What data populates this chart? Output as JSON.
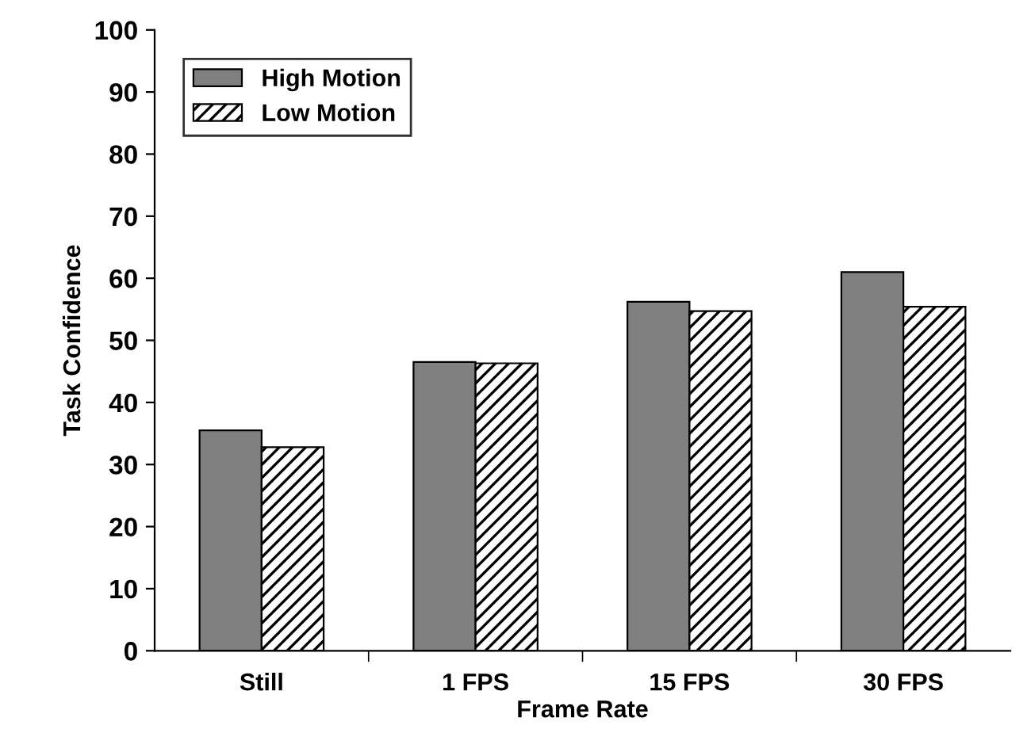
{
  "chart_data": {
    "type": "bar",
    "xlabel": "Frame Rate",
    "ylabel": "Task Confidence",
    "categories": [
      "Still",
      "1 FPS",
      "15 FPS",
      "30 FPS"
    ],
    "series": [
      {
        "name": "High Motion",
        "color": "#808080",
        "values": [
          35.5,
          46.5,
          56.2,
          61
        ]
      },
      {
        "name": "Low Motion",
        "color": "#000000",
        "values": [
          32.8,
          46.3,
          54.7,
          55.4
        ]
      }
    ],
    "ylim": [
      0,
      100
    ],
    "yticks": [
      0,
      10,
      20,
      30,
      40,
      50,
      60,
      70,
      80,
      90,
      100
    ],
    "grid": false,
    "legend": "top left"
  }
}
